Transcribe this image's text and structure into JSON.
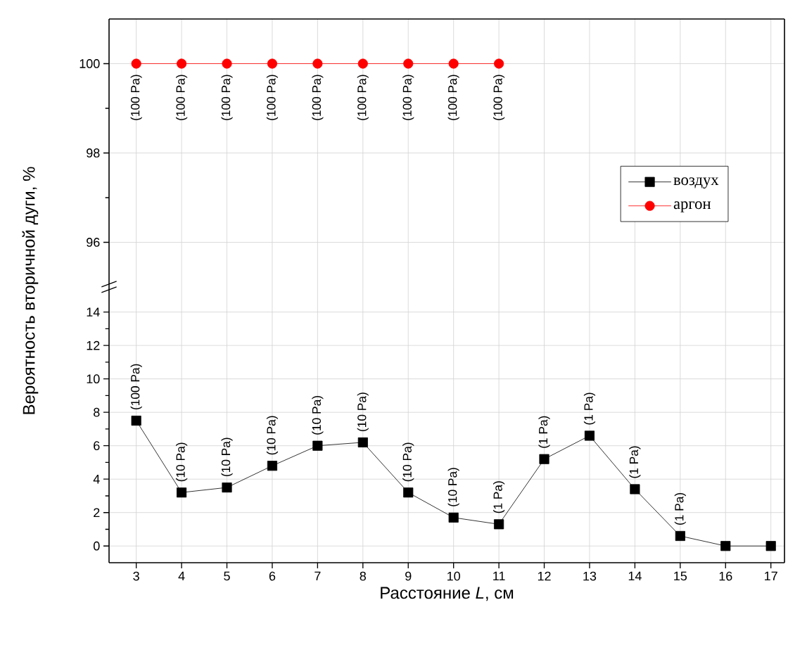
{
  "chart_data": [
    {
      "type": "line",
      "x": [
        3,
        4,
        5,
        6,
        7,
        8,
        9,
        10,
        11
      ],
      "xlim": [
        2.4,
        17.3
      ],
      "xticks": [
        3,
        4,
        5,
        6,
        7,
        8,
        9,
        10,
        11,
        12,
        13,
        14,
        15,
        16,
        17
      ],
      "ylim": [
        95,
        101
      ],
      "yticks": [
        96,
        98,
        100
      ],
      "tick_labels": "y",
      "grid": true,
      "marker": "circle",
      "series": [
        {
          "name": "аргон",
          "color": "#ff0000",
          "values": [
            100,
            100,
            100,
            100,
            100,
            100,
            100,
            100,
            100
          ]
        }
      ],
      "annotations": [
        {
          "text": "(100 Pa)",
          "x": 3,
          "y": 100
        },
        {
          "text": "(100 Pa)",
          "x": 4,
          "y": 100
        },
        {
          "text": "(100 Pa)",
          "x": 5,
          "y": 100
        },
        {
          "text": "(100 Pa)",
          "x": 6,
          "y": 100
        },
        {
          "text": "(100 Pa)",
          "x": 7,
          "y": 100
        },
        {
          "text": "(100 Pa)",
          "x": 8,
          "y": 100
        },
        {
          "text": "(100 Pa)",
          "x": 9,
          "y": 100
        },
        {
          "text": "(100 Pa)",
          "x": 10,
          "y": 100
        },
        {
          "text": "(100 Pa)",
          "x": 11,
          "y": 100
        }
      ]
    },
    {
      "type": "line",
      "x": [
        3,
        4,
        5,
        6,
        7,
        8,
        9,
        10,
        11,
        12,
        13,
        14,
        15,
        16,
        17
      ],
      "xlim": [
        2.4,
        17.3
      ],
      "xticks": [
        3,
        4,
        5,
        6,
        7,
        8,
        9,
        10,
        11,
        12,
        13,
        14,
        15,
        16,
        17
      ],
      "ylim": [
        -1,
        15.5
      ],
      "yticks": [
        0,
        2,
        4,
        6,
        8,
        10,
        12,
        14
      ],
      "grid": true,
      "marker": "square",
      "legend": "top right",
      "xlabel": "Расстояние *L*, см",
      "ylabel": "Вероятность вторичной дуги, %",
      "series": [
        {
          "name": "воздух",
          "color": "#000000",
          "values": [
            7.5,
            3.2,
            3.5,
            4.8,
            6.0,
            6.2,
            3.2,
            1.7,
            1.3,
            5.2,
            6.6,
            3.4,
            0.6,
            0,
            0
          ]
        }
      ],
      "annotations": [
        {
          "text": "(100 Pa)",
          "x": 3,
          "y": 7.5
        },
        {
          "text": "(10 Pa)",
          "x": 4,
          "y": 3.2
        },
        {
          "text": "(10 Pa)",
          "x": 5,
          "y": 3.5
        },
        {
          "text": "(10 Pa)",
          "x": 6,
          "y": 4.8
        },
        {
          "text": "(10 Pa)",
          "x": 7,
          "y": 6.0
        },
        {
          "text": "(10 Pa)",
          "x": 8,
          "y": 6.2
        },
        {
          "text": "(10 Pa)",
          "x": 9,
          "y": 3.2
        },
        {
          "text": "(10 Pa)",
          "x": 10,
          "y": 1.7
        },
        {
          "text": "(1 Pa)",
          "x": 11,
          "y": 1.3
        },
        {
          "text": "(1 Pa)",
          "x": 12,
          "y": 5.2
        },
        {
          "text": "(1 Pa)",
          "x": 13,
          "y": 6.6
        },
        {
          "text": "(1 Pa)",
          "x": 14,
          "y": 3.4
        },
        {
          "text": "(1 Pa)",
          "x": 15,
          "y": 0.6
        }
      ]
    }
  ]
}
